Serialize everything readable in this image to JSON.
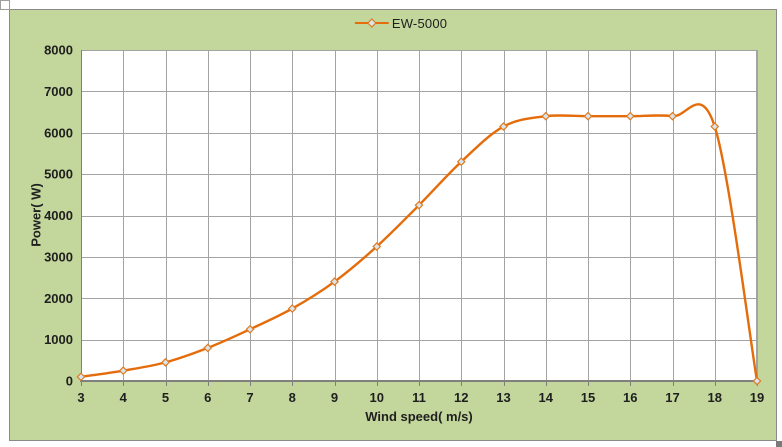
{
  "chart_data": {
    "type": "line",
    "smooth": true,
    "title": "",
    "xlabel": "Wind speed( m/s)",
    "ylabel": "Power( W)",
    "x": [
      3,
      4,
      5,
      6,
      7,
      8,
      9,
      10,
      11,
      12,
      13,
      14,
      15,
      16,
      17,
      18,
      19
    ],
    "series": [
      {
        "name": "EW-5000",
        "values": [
          100,
          250,
          450,
          800,
          1250,
          1750,
          2400,
          3250,
          4250,
          5300,
          6150,
          6400,
          6400,
          6400,
          6400,
          6150,
          0
        ]
      }
    ],
    "xlim": [
      3,
      19
    ],
    "ylim": [
      0,
      8000
    ],
    "x_tick_step": 1,
    "y_tick_step": 1000,
    "x_tick_labels": [
      "3",
      "4",
      "5",
      "6",
      "7",
      "8",
      "9",
      "10",
      "11",
      "12",
      "13",
      "14",
      "15",
      "16",
      "17",
      "18",
      "19"
    ],
    "y_tick_labels": [
      "0",
      "1000",
      "2000",
      "3000",
      "4000",
      "5000",
      "6000",
      "7000",
      "8000"
    ],
    "grid": "both",
    "legend_position": "top-center",
    "marker": "diamond",
    "colors": {
      "line": "#e46c0a",
      "marker_fill": "#d9e5ee",
      "marker_stroke": "#e07a1e",
      "chart_bg": "#c3d69b",
      "chart_border": "#8a8a8a",
      "plot_bg": "#ffffff",
      "grid": "#a3a3a3",
      "axis": "#7f7f7f",
      "text": "#1f1f1f"
    }
  }
}
